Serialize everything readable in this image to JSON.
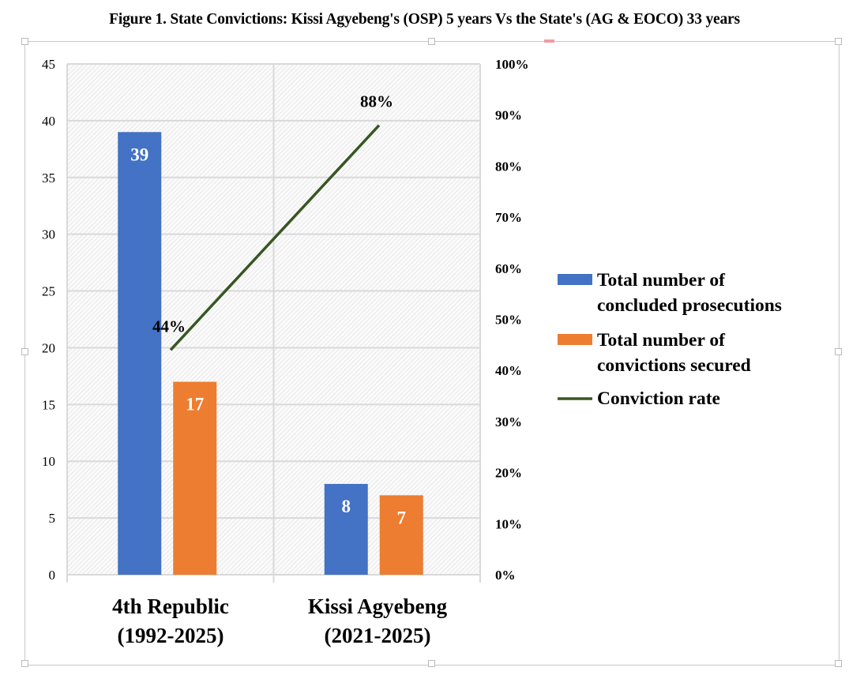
{
  "title": "Figure 1. State Convictions: Kissi Agyebeng's (OSP) 5 years Vs the State's (AG & EOCO) 33 years",
  "chart_data": {
    "type": "bar+line",
    "title": "Figure 1. State Convictions: Kissi Agyebeng's (OSP) 5 years Vs the State's (AG & EOCO) 33 years",
    "categories": [
      [
        "4th Republic",
        "(1992-2025)"
      ],
      [
        "Kissi Agyebeng",
        "(2021-2025)"
      ]
    ],
    "series": [
      {
        "name": "Total number of concluded prosecutions",
        "kind": "bar",
        "axis": "left",
        "color": "#4472C4",
        "values": [
          39,
          8
        ],
        "labels": [
          "39",
          "8"
        ],
        "legend_lines": [
          "Total number of",
          "concluded prosecutions"
        ]
      },
      {
        "name": "Total number of convictions secured",
        "kind": "bar",
        "axis": "left",
        "color": "#ED7D31",
        "values": [
          17,
          7
        ],
        "labels": [
          "17",
          "7"
        ],
        "legend_lines": [
          "Total number of",
          "convictions secured"
        ]
      },
      {
        "name": "Conviction rate",
        "kind": "line",
        "axis": "right",
        "color": "#375623",
        "values": [
          44,
          88
        ],
        "labels": [
          "44%",
          "88%"
        ],
        "legend_lines": [
          "Conviction rate"
        ]
      }
    ],
    "ylim_left": [
      0,
      45
    ],
    "yticks_left": [
      "0",
      "5",
      "10",
      "15",
      "20",
      "25",
      "30",
      "35",
      "40",
      "45"
    ],
    "ylim_right": [
      0,
      100
    ],
    "yticks_right": [
      "0%",
      "10%",
      "20%",
      "30%",
      "40%",
      "50%",
      "60%",
      "70%",
      "80%",
      "90%",
      "100%"
    ],
    "grid": true,
    "legend_position": "right"
  }
}
